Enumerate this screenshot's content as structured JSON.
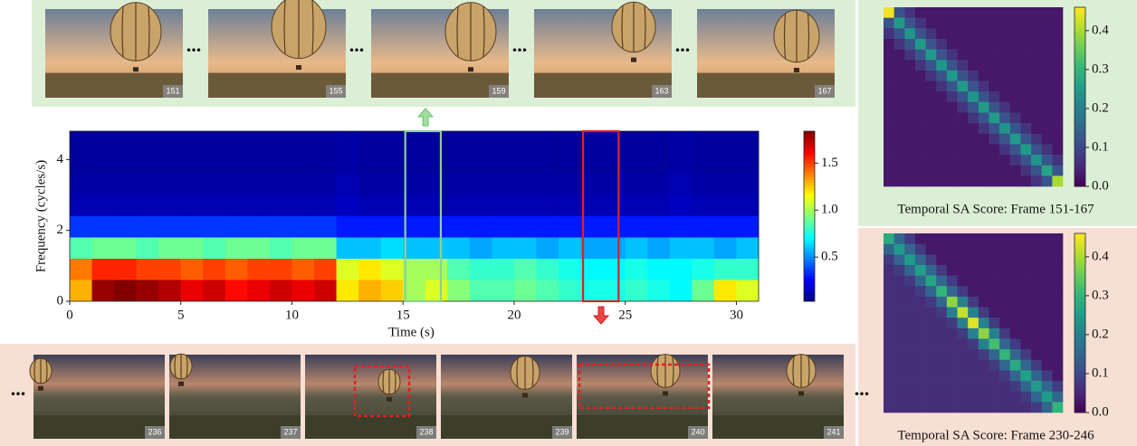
{
  "chart_data": [
    {
      "type": "heatmap",
      "colormap": "jet",
      "xlabel": "Time (s)",
      "ylabel": "Frequency (cycles/s)",
      "x_edges": [
        0,
        1,
        2,
        3,
        4,
        5,
        6,
        7,
        8,
        9,
        10,
        11,
        12,
        13,
        14,
        15,
        16,
        17,
        18,
        19,
        20,
        21,
        22,
        23,
        24,
        25,
        26,
        27,
        28,
        29,
        30,
        31
      ],
      "y_edges": [
        0,
        0.6,
        1.2,
        1.8,
        2.4,
        3.0,
        3.6,
        4.2,
        4.8
      ],
      "z": [
        [
          1.3,
          1.8,
          1.85,
          1.8,
          1.75,
          1.65,
          1.7,
          1.6,
          1.65,
          1.7,
          1.65,
          1.7,
          1.2,
          1.3,
          1.25,
          1.0,
          1.1,
          0.95,
          0.85,
          0.85,
          0.9,
          0.85,
          0.8,
          0.75,
          0.75,
          0.8,
          0.75,
          0.7,
          0.9,
          1.2,
          1.1
        ],
        [
          1.4,
          1.55,
          1.55,
          1.5,
          1.5,
          1.45,
          1.5,
          1.45,
          1.5,
          1.5,
          1.45,
          1.5,
          1.1,
          1.2,
          1.1,
          1.0,
          1.0,
          0.85,
          0.8,
          0.8,
          0.85,
          0.8,
          0.75,
          0.7,
          0.7,
          0.75,
          0.7,
          0.7,
          0.75,
          0.8,
          0.8
        ],
        [
          0.85,
          0.9,
          0.9,
          0.85,
          0.9,
          0.9,
          0.85,
          0.9,
          0.9,
          0.85,
          0.9,
          0.9,
          0.6,
          0.6,
          0.65,
          0.6,
          0.6,
          0.6,
          0.55,
          0.6,
          0.6,
          0.55,
          0.6,
          0.55,
          0.55,
          0.6,
          0.55,
          0.6,
          0.6,
          0.55,
          0.6
        ],
        [
          0.35,
          0.35,
          0.35,
          0.35,
          0.35,
          0.35,
          0.35,
          0.35,
          0.35,
          0.35,
          0.35,
          0.35,
          0.3,
          0.3,
          0.3,
          0.3,
          0.3,
          0.3,
          0.3,
          0.3,
          0.3,
          0.3,
          0.3,
          0.3,
          0.3,
          0.3,
          0.3,
          0.3,
          0.3,
          0.3,
          0.3
        ],
        [
          0.12,
          0.12,
          0.12,
          0.12,
          0.12,
          0.12,
          0.12,
          0.12,
          0.12,
          0.12,
          0.12,
          0.12,
          0.14,
          0.12,
          0.12,
          0.12,
          0.12,
          0.12,
          0.12,
          0.12,
          0.12,
          0.12,
          0.12,
          0.12,
          0.12,
          0.12,
          0.12,
          0.14,
          0.12,
          0.12,
          0.12
        ],
        [
          0.1,
          0.1,
          0.1,
          0.1,
          0.1,
          0.1,
          0.1,
          0.1,
          0.1,
          0.1,
          0.1,
          0.1,
          0.12,
          0.1,
          0.1,
          0.1,
          0.1,
          0.1,
          0.1,
          0.1,
          0.1,
          0.1,
          0.1,
          0.1,
          0.1,
          0.1,
          0.1,
          0.12,
          0.1,
          0.1,
          0.1
        ],
        [
          0.08,
          0.08,
          0.08,
          0.08,
          0.08,
          0.08,
          0.08,
          0.08,
          0.08,
          0.08,
          0.08,
          0.08,
          0.1,
          0.08,
          0.08,
          0.08,
          0.08,
          0.08,
          0.08,
          0.08,
          0.08,
          0.08,
          0.08,
          0.08,
          0.08,
          0.08,
          0.08,
          0.1,
          0.08,
          0.08,
          0.08
        ],
        [
          0.08,
          0.08,
          0.08,
          0.08,
          0.08,
          0.08,
          0.08,
          0.08,
          0.08,
          0.08,
          0.08,
          0.08,
          0.1,
          0.08,
          0.08,
          0.08,
          0.08,
          0.08,
          0.08,
          0.08,
          0.08,
          0.08,
          0.08,
          0.08,
          0.08,
          0.08,
          0.08,
          0.1,
          0.08,
          0.08,
          0.08
        ]
      ],
      "xlim": [
        0,
        31
      ],
      "ylim": [
        0,
        4.8
      ],
      "xticks": [
        0,
        5,
        10,
        15,
        20,
        25,
        30
      ],
      "yticks": [
        0,
        2,
        4
      ],
      "vlim": [
        0.03,
        1.84
      ],
      "cticks": [
        {
          "value": 0.5,
          "label": "0.5"
        },
        {
          "value": 1,
          "label": "1.0"
        },
        {
          "value": 1.5,
          "label": "1.5"
        }
      ],
      "highlights": [
        {
          "x": [
            15.1,
            16.7
          ],
          "color": "#8fd08f"
        },
        {
          "x": [
            23.1,
            24.7
          ],
          "color": "#dd2222"
        }
      ]
    },
    {
      "type": "matrix",
      "colormap": "viridis",
      "title": "Temporal SA Score: Frame 151-167",
      "vlim": [
        0,
        0.46
      ],
      "cticks": [
        {
          "value": 0,
          "label": "0.0"
        },
        0.1,
        0.2,
        0.3,
        0.4
      ],
      "z": [
        [
          0.45,
          0.12,
          0.07,
          0.03,
          0.03,
          0.03,
          0.03,
          0.03,
          0.03,
          0.03,
          0.03,
          0.03,
          0.03,
          0.03,
          0.03,
          0.03,
          0.03
        ],
        [
          0.12,
          0.25,
          0.12,
          0.07,
          0.03,
          0.03,
          0.03,
          0.03,
          0.03,
          0.03,
          0.03,
          0.03,
          0.03,
          0.03,
          0.03,
          0.03,
          0.03
        ],
        [
          0.07,
          0.12,
          0.24,
          0.12,
          0.07,
          0.03,
          0.03,
          0.03,
          0.03,
          0.03,
          0.03,
          0.03,
          0.03,
          0.03,
          0.03,
          0.03,
          0.03
        ],
        [
          0.03,
          0.07,
          0.12,
          0.25,
          0.12,
          0.07,
          0.03,
          0.03,
          0.03,
          0.03,
          0.03,
          0.03,
          0.03,
          0.03,
          0.03,
          0.03,
          0.03
        ],
        [
          0.03,
          0.03,
          0.07,
          0.12,
          0.25,
          0.12,
          0.07,
          0.03,
          0.03,
          0.03,
          0.03,
          0.03,
          0.03,
          0.03,
          0.03,
          0.03,
          0.03
        ],
        [
          0.03,
          0.03,
          0.03,
          0.07,
          0.12,
          0.24,
          0.12,
          0.07,
          0.03,
          0.03,
          0.03,
          0.03,
          0.03,
          0.03,
          0.03,
          0.03,
          0.03
        ],
        [
          0.03,
          0.03,
          0.03,
          0.03,
          0.07,
          0.12,
          0.25,
          0.12,
          0.07,
          0.03,
          0.03,
          0.03,
          0.03,
          0.03,
          0.03,
          0.03,
          0.03
        ],
        [
          0.03,
          0.03,
          0.03,
          0.03,
          0.03,
          0.07,
          0.12,
          0.25,
          0.12,
          0.07,
          0.03,
          0.03,
          0.03,
          0.03,
          0.03,
          0.03,
          0.03
        ],
        [
          0.03,
          0.03,
          0.03,
          0.03,
          0.03,
          0.03,
          0.07,
          0.12,
          0.24,
          0.12,
          0.07,
          0.03,
          0.03,
          0.03,
          0.03,
          0.03,
          0.03
        ],
        [
          0.03,
          0.03,
          0.03,
          0.03,
          0.03,
          0.03,
          0.03,
          0.07,
          0.12,
          0.25,
          0.12,
          0.07,
          0.03,
          0.03,
          0.03,
          0.03,
          0.03
        ],
        [
          0.03,
          0.03,
          0.03,
          0.03,
          0.03,
          0.03,
          0.03,
          0.03,
          0.07,
          0.12,
          0.25,
          0.12,
          0.07,
          0.03,
          0.03,
          0.03,
          0.03
        ],
        [
          0.03,
          0.03,
          0.03,
          0.03,
          0.03,
          0.03,
          0.03,
          0.03,
          0.03,
          0.07,
          0.12,
          0.24,
          0.12,
          0.07,
          0.03,
          0.03,
          0.03
        ],
        [
          0.03,
          0.03,
          0.03,
          0.03,
          0.03,
          0.03,
          0.03,
          0.03,
          0.03,
          0.03,
          0.07,
          0.12,
          0.25,
          0.12,
          0.07,
          0.03,
          0.03
        ],
        [
          0.03,
          0.03,
          0.03,
          0.03,
          0.03,
          0.03,
          0.03,
          0.03,
          0.03,
          0.03,
          0.03,
          0.07,
          0.12,
          0.25,
          0.12,
          0.07,
          0.03
        ],
        [
          0.03,
          0.03,
          0.03,
          0.03,
          0.03,
          0.03,
          0.03,
          0.03,
          0.03,
          0.03,
          0.03,
          0.03,
          0.07,
          0.12,
          0.24,
          0.12,
          0.07
        ],
        [
          0.03,
          0.03,
          0.03,
          0.03,
          0.03,
          0.03,
          0.03,
          0.03,
          0.03,
          0.03,
          0.03,
          0.03,
          0.03,
          0.07,
          0.12,
          0.27,
          0.12
        ],
        [
          0.03,
          0.03,
          0.03,
          0.03,
          0.03,
          0.03,
          0.03,
          0.03,
          0.03,
          0.03,
          0.03,
          0.03,
          0.03,
          0.03,
          0.07,
          0.12,
          0.4
        ]
      ]
    },
    {
      "type": "matrix",
      "colormap": "viridis",
      "title": "Temporal SA Score: Frame 230-246",
      "vlim": [
        0,
        0.46
      ],
      "cticks": [
        {
          "value": 0,
          "label": "0.0"
        },
        0.1,
        0.2,
        0.3,
        0.4
      ],
      "z": [
        [
          0.28,
          0.15,
          0.08,
          0.03,
          0.03,
          0.03,
          0.03,
          0.03,
          0.03,
          0.03,
          0.03,
          0.03,
          0.03,
          0.03,
          0.03,
          0.03,
          0.03
        ],
        [
          0.15,
          0.25,
          0.15,
          0.08,
          0.03,
          0.03,
          0.03,
          0.03,
          0.03,
          0.03,
          0.03,
          0.03,
          0.03,
          0.03,
          0.03,
          0.03,
          0.03
        ],
        [
          0.08,
          0.15,
          0.25,
          0.15,
          0.08,
          0.03,
          0.03,
          0.03,
          0.03,
          0.03,
          0.03,
          0.03,
          0.03,
          0.03,
          0.03,
          0.03,
          0.03
        ],
        [
          0.06,
          0.08,
          0.15,
          0.26,
          0.15,
          0.08,
          0.03,
          0.03,
          0.03,
          0.03,
          0.03,
          0.03,
          0.03,
          0.03,
          0.03,
          0.03,
          0.03
        ],
        [
          0.06,
          0.06,
          0.08,
          0.15,
          0.27,
          0.15,
          0.08,
          0.03,
          0.03,
          0.03,
          0.03,
          0.03,
          0.03,
          0.03,
          0.03,
          0.03,
          0.03
        ],
        [
          0.06,
          0.06,
          0.06,
          0.08,
          0.15,
          0.3,
          0.15,
          0.08,
          0.03,
          0.03,
          0.03,
          0.03,
          0.03,
          0.03,
          0.03,
          0.03,
          0.03
        ],
        [
          0.06,
          0.06,
          0.06,
          0.06,
          0.08,
          0.15,
          0.38,
          0.2,
          0.08,
          0.03,
          0.03,
          0.03,
          0.03,
          0.03,
          0.03,
          0.03,
          0.03
        ],
        [
          0.06,
          0.06,
          0.06,
          0.06,
          0.06,
          0.08,
          0.2,
          0.42,
          0.2,
          0.08,
          0.03,
          0.03,
          0.03,
          0.03,
          0.03,
          0.03,
          0.03
        ],
        [
          0.06,
          0.06,
          0.06,
          0.06,
          0.06,
          0.06,
          0.08,
          0.2,
          0.44,
          0.2,
          0.08,
          0.03,
          0.03,
          0.03,
          0.03,
          0.03,
          0.03
        ],
        [
          0.06,
          0.06,
          0.06,
          0.06,
          0.06,
          0.06,
          0.06,
          0.08,
          0.2,
          0.38,
          0.2,
          0.08,
          0.03,
          0.03,
          0.03,
          0.03,
          0.03
        ],
        [
          0.06,
          0.06,
          0.06,
          0.06,
          0.06,
          0.06,
          0.06,
          0.06,
          0.08,
          0.2,
          0.32,
          0.15,
          0.08,
          0.03,
          0.03,
          0.03,
          0.03
        ],
        [
          0.06,
          0.06,
          0.06,
          0.06,
          0.06,
          0.06,
          0.06,
          0.06,
          0.06,
          0.08,
          0.15,
          0.3,
          0.15,
          0.08,
          0.03,
          0.03,
          0.03
        ],
        [
          0.06,
          0.06,
          0.06,
          0.06,
          0.06,
          0.06,
          0.06,
          0.06,
          0.06,
          0.06,
          0.08,
          0.15,
          0.28,
          0.15,
          0.08,
          0.03,
          0.03
        ],
        [
          0.06,
          0.06,
          0.06,
          0.06,
          0.06,
          0.06,
          0.06,
          0.06,
          0.06,
          0.06,
          0.06,
          0.08,
          0.15,
          0.26,
          0.15,
          0.08,
          0.03
        ],
        [
          0.06,
          0.06,
          0.06,
          0.06,
          0.06,
          0.06,
          0.06,
          0.06,
          0.06,
          0.06,
          0.06,
          0.06,
          0.08,
          0.15,
          0.25,
          0.15,
          0.08
        ],
        [
          0.06,
          0.06,
          0.06,
          0.06,
          0.06,
          0.06,
          0.06,
          0.06,
          0.06,
          0.06,
          0.06,
          0.06,
          0.06,
          0.08,
          0.15,
          0.25,
          0.15
        ],
        [
          0.06,
          0.06,
          0.06,
          0.06,
          0.06,
          0.06,
          0.06,
          0.06,
          0.06,
          0.06,
          0.06,
          0.06,
          0.06,
          0.06,
          0.08,
          0.15,
          0.3
        ]
      ]
    }
  ],
  "separator": "...",
  "top_frames": {
    "labels": [
      "151",
      "155",
      "159",
      "163",
      "167"
    ]
  },
  "bottom_frames": {
    "labels": [
      "236",
      "237",
      "238",
      "239",
      "240",
      "241"
    ]
  }
}
